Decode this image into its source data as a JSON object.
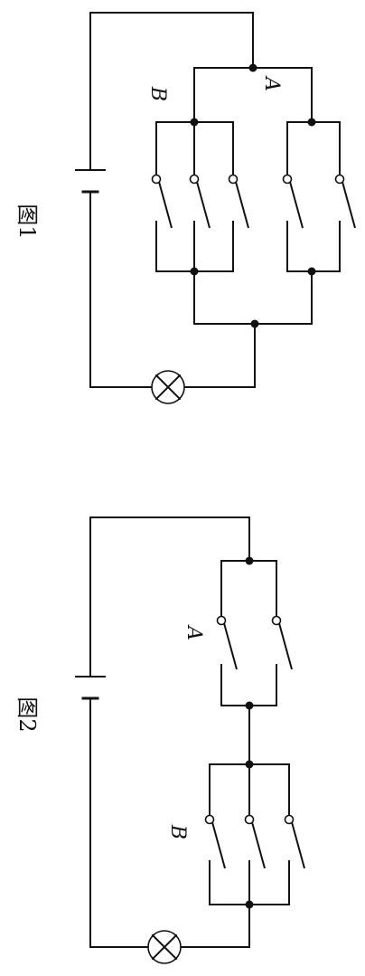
{
  "figure1": {
    "caption": "图1",
    "label_a": "A",
    "label_b": "B"
  },
  "figure2": {
    "caption": "图2",
    "label_a": "A",
    "label_b": "B"
  },
  "colors": {
    "ink": "#111111",
    "paper": "#ffffff"
  }
}
